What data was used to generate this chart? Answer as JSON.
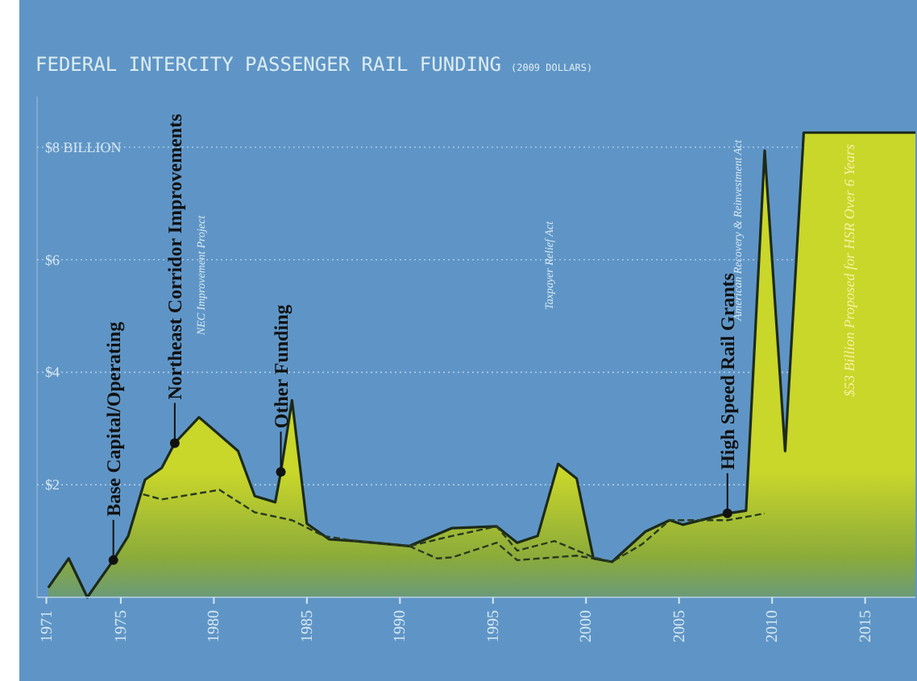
{
  "chart_data": {
    "type": "area",
    "title": "FEDERAL INTERCITY PASSENGER RAIL FUNDING",
    "subtitle": "(2009 DOLLARS)",
    "xlim": [
      1970.5,
      2017.7
    ],
    "xticks": [
      1971,
      1975,
      1980,
      1985,
      1990,
      1995,
      2000,
      2005,
      2010,
      2015
    ],
    "ylim": [
      0,
      8.9
    ],
    "yticks": [
      {
        "value": 2,
        "label": "$2"
      },
      {
        "value": 4,
        "label": "$4"
      },
      {
        "value": 6,
        "label": "$6"
      },
      {
        "value": 8,
        "label": "$8 BILLION"
      }
    ],
    "grid": "y",
    "series": [
      {
        "color": "#c9d62a",
        "line_style": "solid",
        "x": [
          1971.1,
          1972.2,
          1973.2,
          1974.6,
          1975.4,
          1976.3,
          1977.2,
          1977.9,
          1979.2,
          1981.3,
          1982.2,
          1983.3,
          1983.6,
          1984.2,
          1985.0,
          1986.2,
          1987.6,
          1990.5,
          1992.8,
          1995.2,
          1996.3,
          1997.4,
          1998.5,
          1999.5,
          2000.4,
          2001.4,
          2003.2,
          2004.5,
          2005.2,
          2007.6,
          2008.6,
          2009.6,
          2010.7,
          2011.7,
          2017.7
        ],
        "values": [
          0.17,
          0.69,
          0,
          0.66,
          1.09,
          2.09,
          2.3,
          2.74,
          3.2,
          2.6,
          1.8,
          1.69,
          2.23,
          3.5,
          1.31,
          1.03,
          1.0,
          0.91,
          1.23,
          1.26,
          0.97,
          1.09,
          2.37,
          2.11,
          0.69,
          0.63,
          1.17,
          1.37,
          1.29,
          1.49,
          1.54,
          7.94,
          2.6,
          8.26,
          8.26
        ]
      },
      {
        "type": "line",
        "color": "#2a3a20",
        "line_style": "dashed",
        "x": [
          1976.2,
          1977.2,
          1978.3,
          1980.3,
          1982.2,
          1984.2,
          1985.9,
          1987.6,
          1990.5,
          1992.8,
          1995.2,
          1996.3,
          1998.3,
          2000.4,
          2001.4,
          2003.0,
          2004.5,
          2007.6,
          2009.6
        ],
        "values": [
          1.83,
          1.74,
          1.8,
          1.91,
          1.51,
          1.37,
          1.09,
          1.0,
          0.91,
          1.09,
          1.26,
          0.83,
          1.0,
          0.71,
          0.63,
          0.94,
          1.37,
          1.37,
          1.49
        ]
      },
      {
        "type": "line",
        "color": "#2a3a20",
        "line_style": "dashed",
        "x": [
          1990.5,
          1992.0,
          1992.8,
          1995.2,
          1996.3,
          1999.5,
          2000.4
        ],
        "values": [
          0.91,
          0.69,
          0.71,
          0.97,
          0.66,
          0.74,
          0.69
        ]
      }
    ],
    "annotations": [
      {
        "text": "Base Capital/Operating",
        "x": 1974.6,
        "y": 0.66
      },
      {
        "text": "Northeast Corridor Improvements",
        "x": 1977.9,
        "y": 2.74
      },
      {
        "text": "Other Funding",
        "x": 1983.6,
        "y": 2.23
      },
      {
        "text": "High Speed Rail Grants",
        "x": 2007.6,
        "y": 1.49
      },
      "NEC Improvement Project",
      "Taxpayer Relief Act",
      "American Recovery & Reinvestment Act",
      "$53 Billion Proposed for HSR Over 6 Years"
    ]
  }
}
